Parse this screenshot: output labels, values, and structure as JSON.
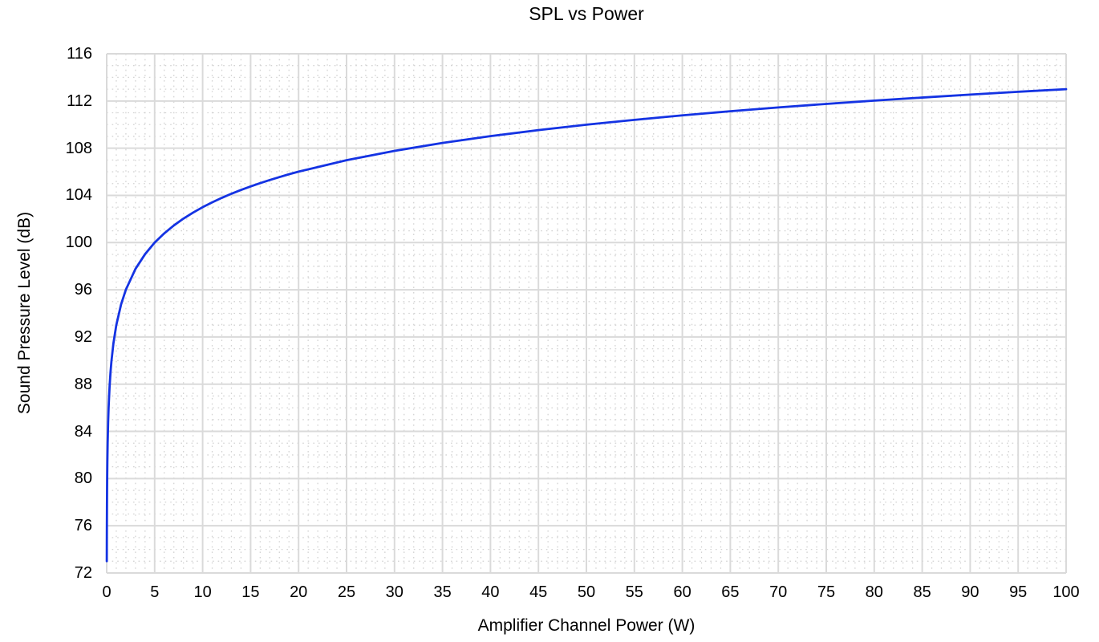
{
  "chart_data": {
    "type": "line",
    "title": "SPL vs Power",
    "xlabel": "Amplifier Channel Power (W)",
    "ylabel": "Sound Pressure Level (dB)",
    "xlim": [
      0,
      100
    ],
    "ylim": [
      72,
      116
    ],
    "x_ticks": [
      0,
      5,
      10,
      15,
      20,
      25,
      30,
      35,
      40,
      45,
      50,
      55,
      60,
      65,
      70,
      75,
      80,
      85,
      90,
      95,
      100
    ],
    "y_ticks": [
      72,
      76,
      80,
      84,
      88,
      92,
      96,
      100,
      104,
      108,
      112,
      116
    ],
    "x_minor_step": 1,
    "y_minor_step": 1,
    "grid": "on",
    "legend": "none",
    "line_color": "#1433e3",
    "grid_major_color": "#dadada",
    "grid_minor_color": "#d3d3d3",
    "series": [
      {
        "name": "SPL",
        "points": [
          [
            0.01,
            73.0
          ],
          [
            0.015,
            74.76
          ],
          [
            0.02,
            76.01
          ],
          [
            0.03,
            77.77
          ],
          [
            0.04,
            79.02
          ],
          [
            0.05,
            79.99
          ],
          [
            0.07,
            81.45
          ],
          [
            0.1,
            83.0
          ],
          [
            0.15,
            84.76
          ],
          [
            0.2,
            86.01
          ],
          [
            0.3,
            87.77
          ],
          [
            0.4,
            89.02
          ],
          [
            0.5,
            89.99
          ],
          [
            0.7,
            91.45
          ],
          [
            1,
            93.0
          ],
          [
            1.5,
            94.76
          ],
          [
            2,
            96.01
          ],
          [
            3,
            97.77
          ],
          [
            4,
            99.02
          ],
          [
            5,
            100.0
          ],
          [
            6,
            100.78
          ],
          [
            7,
            101.45
          ],
          [
            8,
            102.03
          ],
          [
            9,
            102.54
          ],
          [
            10,
            103.0
          ],
          [
            11,
            103.41
          ],
          [
            12,
            103.79
          ],
          [
            13,
            104.14
          ],
          [
            14,
            104.46
          ],
          [
            15,
            104.76
          ],
          [
            16,
            105.04
          ],
          [
            17,
            105.3
          ],
          [
            18,
            105.55
          ],
          [
            19,
            105.79
          ],
          [
            20,
            106.01
          ],
          [
            25,
            106.98
          ],
          [
            30,
            107.77
          ],
          [
            35,
            108.44
          ],
          [
            40,
            109.02
          ],
          [
            45,
            109.53
          ],
          [
            50,
            109.99
          ],
          [
            55,
            110.4
          ],
          [
            60,
            110.78
          ],
          [
            65,
            111.13
          ],
          [
            70,
            111.45
          ],
          [
            75,
            111.75
          ],
          [
            80,
            112.03
          ],
          [
            85,
            112.29
          ],
          [
            90,
            112.54
          ],
          [
            95,
            112.78
          ],
          [
            100,
            113.0
          ]
        ]
      }
    ]
  }
}
